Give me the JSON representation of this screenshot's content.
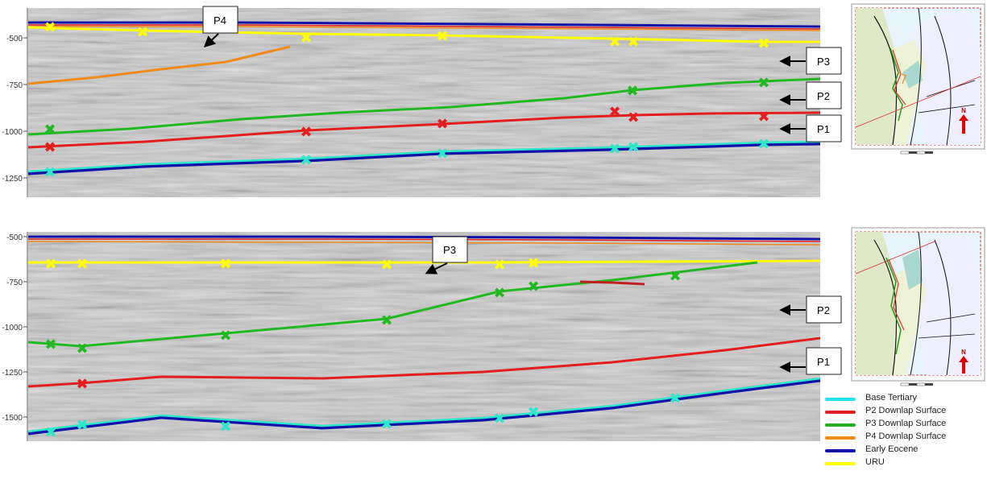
{
  "top_section": {
    "depth_ticks": [
      "-500",
      "-750",
      "-1000",
      "-1250"
    ],
    "callouts": [
      {
        "label": "P4"
      },
      {
        "label": "P3"
      },
      {
        "label": "P2"
      },
      {
        "label": "P1"
      }
    ]
  },
  "bottom_section": {
    "depth_ticks": [
      "-500",
      "-750",
      "-1000",
      "-1250",
      "-1500"
    ],
    "callouts": [
      {
        "label": "P3"
      },
      {
        "label": "P2"
      },
      {
        "label": "P1"
      }
    ]
  },
  "map_north_label": "N",
  "legend": {
    "items": [
      {
        "label": "Base Tertiary",
        "color": "#22e6e6"
      },
      {
        "label": "P2 Downlap Surface",
        "color": "#e02020"
      },
      {
        "label": "P3 Downlap Surface",
        "color": "#22b022"
      },
      {
        "label": "P4 Downlap Surface",
        "color": "#f08a1a"
      },
      {
        "label": "Early Eocene",
        "color": "#1010b0"
      },
      {
        "label": "URU",
        "color": "#ffff00"
      }
    ]
  },
  "horizon_colors": {
    "base_tertiary": "#2ee6c8",
    "p2": "#e41e1e",
    "p3": "#22b822",
    "p4": "#f08a1a",
    "early_eocene": "#1212a8",
    "uru": "#ffff00"
  }
}
